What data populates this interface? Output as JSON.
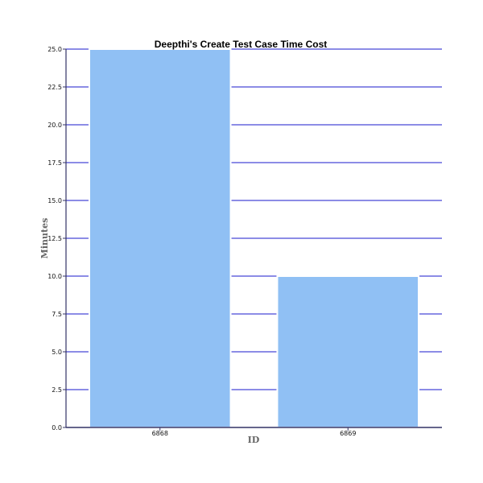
{
  "chart_data": {
    "type": "bar",
    "title": "Deepthi's Create Test Case Time Cost",
    "xlabel": "ID",
    "ylabel": "Minutes",
    "categories": [
      "6868",
      "6869"
    ],
    "values": [
      25.0,
      10.0
    ],
    "ylim": [
      0,
      25
    ],
    "yticks": [
      0,
      2.5,
      5,
      7.5,
      10,
      12.5,
      15,
      17.5,
      20,
      22.5,
      25
    ],
    "ytick_labels": [
      "0.0",
      "2.5",
      "5.0",
      "7.5",
      "10.0",
      "12.5",
      "15.0",
      "17.5",
      "20.0",
      "22.5",
      "25.0"
    ],
    "grid": true,
    "bar_color": "#90c0f4",
    "bar_edge_color": "#ffffff",
    "grid_color": "#6666dd",
    "axis_color": "#333366"
  }
}
